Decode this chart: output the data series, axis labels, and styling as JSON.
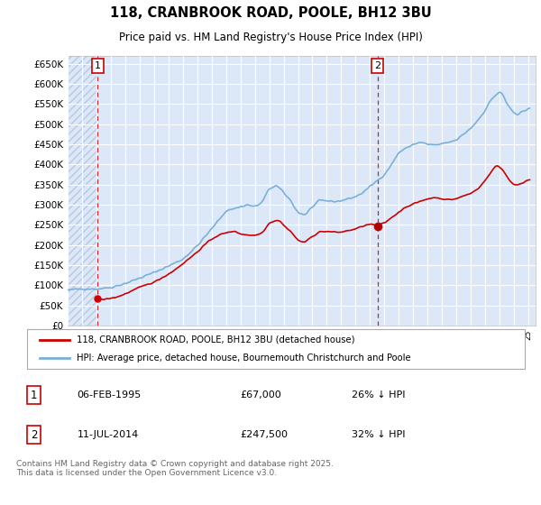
{
  "title": "118, CRANBROOK ROAD, POOLE, BH12 3BU",
  "subtitle": "Price paid vs. HM Land Registry's House Price Index (HPI)",
  "background_color": "#dce8f8",
  "hatch_color": "#c8d8ee",
  "grid_color": "#ffffff",
  "red_color": "#cc0000",
  "blue_color": "#7ab0d8",
  "legend_label_red": "118, CRANBROOK ROAD, POOLE, BH12 3BU (detached house)",
  "legend_label_blue": "HPI: Average price, detached house, Bournemouth Christchurch and Poole",
  "footer": "Contains HM Land Registry data © Crown copyright and database right 2025.\nThis data is licensed under the Open Government Licence v3.0.",
  "sale1_year": 1995.09,
  "sale1_price": 67000,
  "sale2_year": 2014.53,
  "sale2_price": 247500,
  "ylim_max": 670000,
  "ytick_step": 50000,
  "xmin": 1993.0,
  "xmax": 2025.5
}
